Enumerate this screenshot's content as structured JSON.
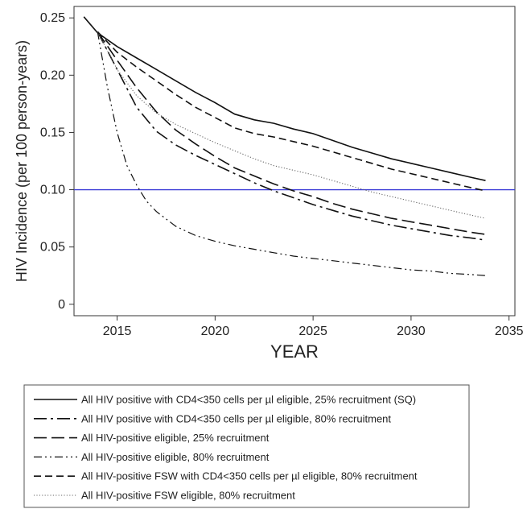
{
  "chart_data": {
    "type": "line",
    "title": "",
    "xlabel": "YEAR",
    "ylabel": "HIV Incidence (per 100 person-years)",
    "xlim": [
      2012.8,
      2035.3
    ],
    "ylim": [
      -0.01,
      0.26
    ],
    "xticks": [
      2015,
      2020,
      2025,
      2030,
      2035
    ],
    "yticks": [
      0,
      0.05,
      0.1,
      0.15,
      0.2,
      0.25
    ],
    "ytick_labels": [
      "0",
      "0.05",
      "0.10",
      "0.15",
      "0.20",
      "0.25"
    ],
    "grid": false,
    "legend_position": "bottom",
    "reference_line": {
      "y": 0.1,
      "color": "#3b3bd6"
    },
    "series": [
      {
        "name": "All HIV positive with CD4<350 cells per µl eligible, 25% recruitment (SQ)",
        "dash": "solid",
        "x": [
          2013.3,
          2014,
          2015,
          2016,
          2017,
          2018,
          2019,
          2020,
          2021,
          2022,
          2023,
          2024,
          2025,
          2026,
          2027,
          2028,
          2029,
          2030,
          2031,
          2032,
          2033,
          2033.8
        ],
        "y": [
          0.251,
          0.237,
          0.225,
          0.215,
          0.205,
          0.195,
          0.185,
          0.176,
          0.166,
          0.161,
          0.158,
          0.153,
          0.149,
          0.143,
          0.137,
          0.132,
          0.127,
          0.123,
          0.119,
          0.115,
          0.111,
          0.108
        ]
      },
      {
        "name": "All HIV positive with CD4<350 cells per µl eligible, 80% recruitment",
        "dash": "longdashdot",
        "x": [
          2014,
          2015,
          2016,
          2017,
          2018,
          2019,
          2020,
          2021,
          2022,
          2023,
          2024,
          2025,
          2026,
          2027,
          2028,
          2029,
          2030,
          2031,
          2032,
          2033,
          2033.8
        ],
        "y": [
          0.238,
          0.205,
          0.172,
          0.151,
          0.139,
          0.13,
          0.122,
          0.114,
          0.106,
          0.099,
          0.093,
          0.087,
          0.082,
          0.077,
          0.073,
          0.069,
          0.066,
          0.063,
          0.06,
          0.058,
          0.056
        ]
      },
      {
        "name": "All HIV-positive eligible, 25% recruitment",
        "dash": "longdash",
        "x": [
          2014,
          2015,
          2016,
          2017,
          2018,
          2019,
          2020,
          2021,
          2022,
          2023,
          2024,
          2025,
          2026,
          2027,
          2028,
          2029,
          2030,
          2031,
          2032,
          2033,
          2033.8
        ],
        "y": [
          0.238,
          0.213,
          0.189,
          0.168,
          0.152,
          0.14,
          0.129,
          0.119,
          0.112,
          0.105,
          0.099,
          0.094,
          0.088,
          0.083,
          0.079,
          0.075,
          0.072,
          0.069,
          0.066,
          0.063,
          0.061
        ]
      },
      {
        "name": "All HIV-positive eligible, 80% recruitment",
        "dash": "dashdotdot",
        "x": [
          2014,
          2014.5,
          2015,
          2015.5,
          2016,
          2016.5,
          2017,
          2018,
          2019,
          2020,
          2021,
          2022,
          2023,
          2024,
          2025,
          2026,
          2027,
          2028,
          2029,
          2030,
          2031,
          2032,
          2033,
          2033.8
        ],
        "y": [
          0.238,
          0.19,
          0.15,
          0.121,
          0.104,
          0.09,
          0.081,
          0.068,
          0.06,
          0.055,
          0.051,
          0.048,
          0.045,
          0.042,
          0.04,
          0.038,
          0.036,
          0.034,
          0.032,
          0.03,
          0.029,
          0.027,
          0.026,
          0.025
        ]
      },
      {
        "name": "All HIV-positive FSW with CD4<350 cells per µl eligible, 80% recruitment",
        "dash": "dash",
        "x": [
          2014,
          2015,
          2016,
          2017,
          2018,
          2019,
          2020,
          2021,
          2022,
          2023,
          2024,
          2025,
          2026,
          2027,
          2028,
          2029,
          2030,
          2031,
          2032,
          2033,
          2033.8
        ],
        "y": [
          0.238,
          0.22,
          0.207,
          0.195,
          0.183,
          0.172,
          0.163,
          0.154,
          0.149,
          0.146,
          0.142,
          0.138,
          0.133,
          0.128,
          0.123,
          0.118,
          0.114,
          0.11,
          0.106,
          0.102,
          0.099
        ]
      },
      {
        "name": "All HIV-positive FSW eligible, 80% recruitment",
        "dash": "dot",
        "x": [
          2014,
          2015,
          2016,
          2017,
          2018,
          2019,
          2020,
          2021,
          2022,
          2023,
          2024,
          2025,
          2026,
          2027,
          2028,
          2029,
          2030,
          2031,
          2032,
          2033,
          2033.8
        ],
        "y": [
          0.238,
          0.205,
          0.182,
          0.167,
          0.157,
          0.149,
          0.141,
          0.134,
          0.127,
          0.121,
          0.117,
          0.113,
          0.108,
          0.103,
          0.098,
          0.094,
          0.09,
          0.086,
          0.082,
          0.078,
          0.075
        ]
      }
    ]
  }
}
